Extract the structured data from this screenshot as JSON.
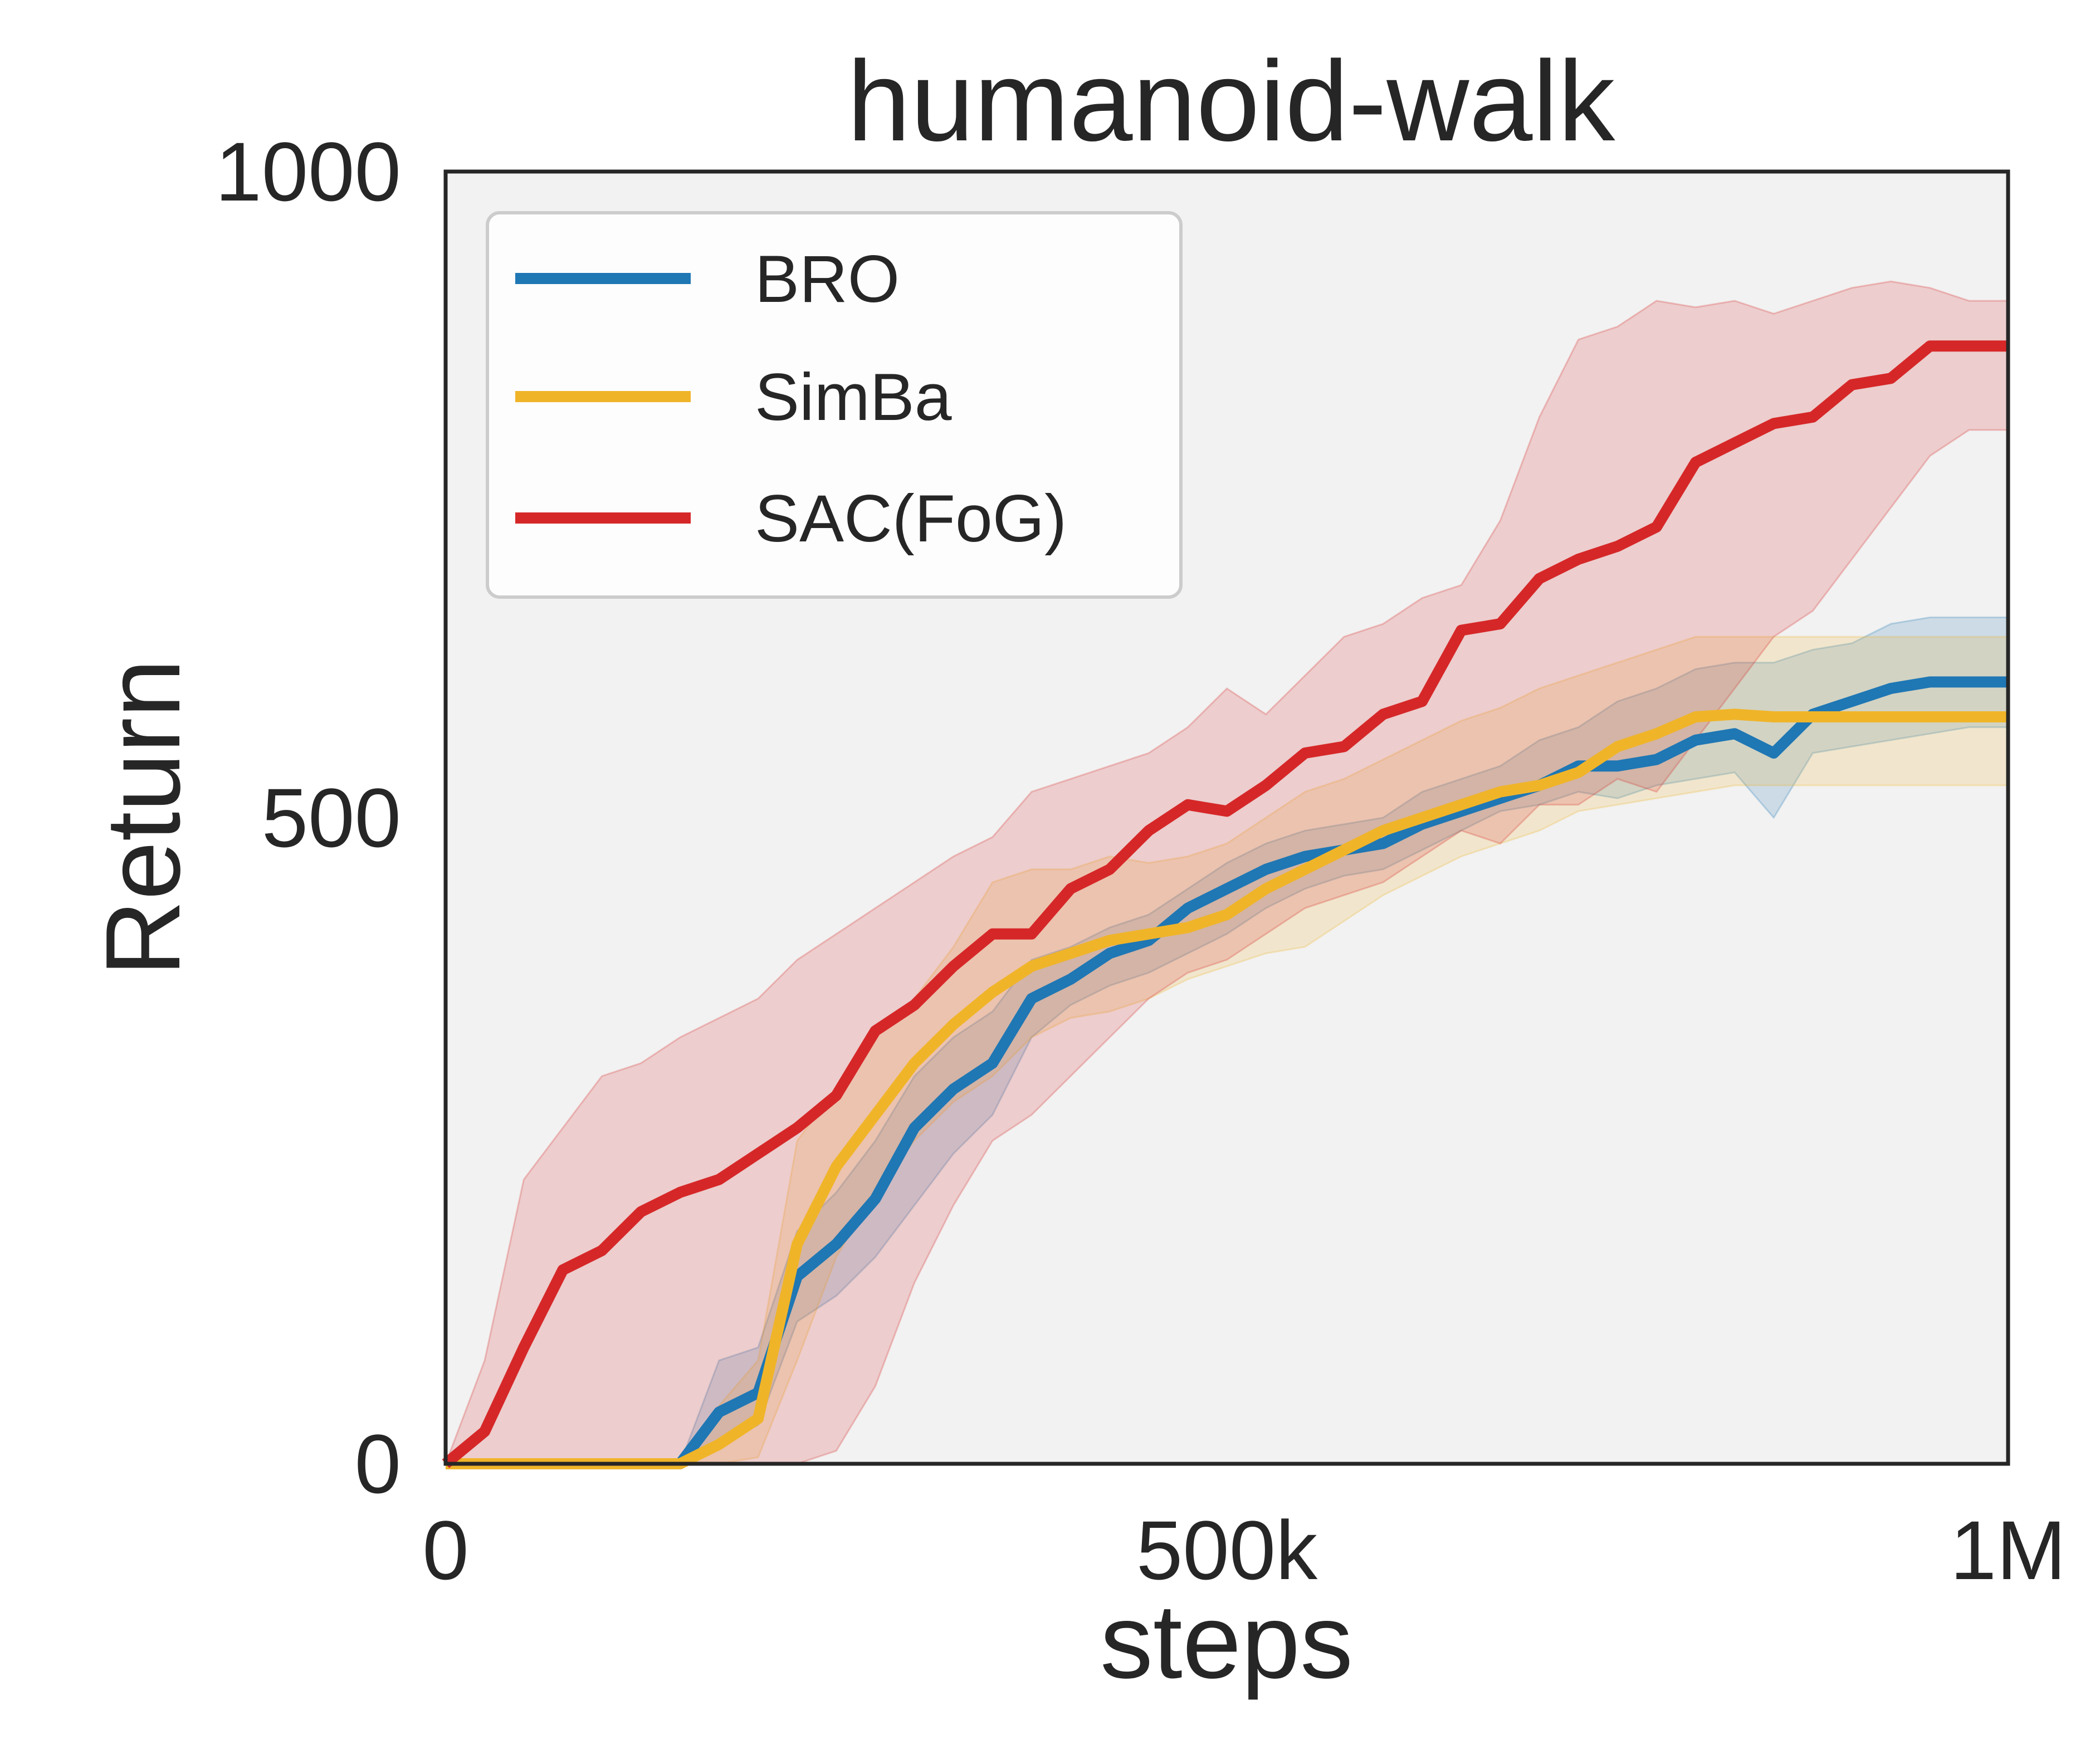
{
  "chart_data": {
    "type": "line",
    "title": "humanoid-walk",
    "xlabel": "steps",
    "ylabel": "Return",
    "xlim": [
      0,
      1000000
    ],
    "ylim": [
      0,
      1000
    ],
    "xticks": [
      {
        "value": 0,
        "label": "0"
      },
      {
        "value": 500000,
        "label": "500k"
      },
      {
        "value": 1000000,
        "label": "1M"
      }
    ],
    "yticks": [
      {
        "value": 0,
        "label": "0"
      },
      {
        "value": 500,
        "label": "500"
      },
      {
        "value": 1000,
        "label": "1000"
      }
    ],
    "grid": false,
    "legend_position": "top-left",
    "background_color": "#f2f2f2",
    "series": [
      {
        "name": "BRO",
        "color": "#1f77b4",
        "x": [
          0,
          25000,
          50000,
          75000,
          100000,
          125000,
          150000,
          175000,
          200000,
          225000,
          250000,
          275000,
          300000,
          325000,
          350000,
          375000,
          400000,
          425000,
          450000,
          475000,
          500000,
          525000,
          550000,
          575000,
          600000,
          625000,
          650000,
          675000,
          700000,
          725000,
          750000,
          775000,
          800000,
          825000,
          850000,
          875000,
          900000,
          925000,
          950000,
          975000,
          1000000
        ],
        "y": [
          0,
          0,
          0,
          0,
          0,
          0,
          0,
          40,
          55,
          145,
          170,
          205,
          260,
          290,
          310,
          360,
          375,
          395,
          405,
          430,
          445,
          460,
          470,
          475,
          480,
          495,
          505,
          515,
          525,
          540,
          540,
          545,
          560,
          565,
          550,
          580,
          590,
          600,
          605,
          605,
          605
        ],
        "lower": [
          0,
          0,
          0,
          0,
          0,
          0,
          0,
          15,
          30,
          110,
          130,
          160,
          200,
          240,
          270,
          330,
          355,
          370,
          380,
          395,
          410,
          430,
          445,
          455,
          460,
          475,
          490,
          505,
          510,
          520,
          515,
          525,
          530,
          535,
          500,
          550,
          555,
          560,
          565,
          570,
          570
        ],
        "upper": [
          0,
          0,
          0,
          0,
          0,
          0,
          0,
          80,
          90,
          180,
          210,
          250,
          300,
          330,
          350,
          390,
          400,
          415,
          425,
          445,
          465,
          480,
          490,
          495,
          500,
          520,
          530,
          540,
          560,
          570,
          590,
          600,
          615,
          620,
          620,
          630,
          635,
          650,
          655,
          655,
          655
        ]
      },
      {
        "name": "SimBa",
        "color": "#f0b429",
        "x": [
          0,
          25000,
          50000,
          75000,
          100000,
          125000,
          150000,
          175000,
          200000,
          225000,
          250000,
          275000,
          300000,
          325000,
          350000,
          375000,
          400000,
          425000,
          450000,
          475000,
          500000,
          525000,
          550000,
          575000,
          600000,
          625000,
          650000,
          675000,
          700000,
          725000,
          750000,
          775000,
          800000,
          825000,
          850000,
          875000,
          900000,
          925000,
          950000,
          975000,
          1000000
        ],
        "y": [
          0,
          0,
          0,
          0,
          0,
          0,
          0,
          15,
          35,
          170,
          230,
          270,
          310,
          340,
          365,
          385,
          395,
          405,
          410,
          415,
          425,
          445,
          460,
          475,
          490,
          500,
          510,
          520,
          525,
          535,
          555,
          565,
          578,
          580,
          578,
          578,
          578,
          578,
          578,
          578,
          578
        ],
        "lower": [
          0,
          0,
          0,
          0,
          0,
          0,
          0,
          0,
          5,
          80,
          160,
          210,
          250,
          280,
          300,
          330,
          345,
          350,
          360,
          375,
          385,
          395,
          400,
          420,
          440,
          455,
          470,
          480,
          490,
          505,
          510,
          515,
          520,
          525,
          525,
          525,
          525,
          525,
          525,
          525,
          525
        ],
        "upper": [
          0,
          0,
          0,
          0,
          0,
          0,
          0,
          45,
          80,
          250,
          290,
          330,
          360,
          400,
          450,
          460,
          460,
          470,
          465,
          470,
          480,
          500,
          520,
          530,
          545,
          560,
          575,
          585,
          600,
          610,
          620,
          630,
          640,
          640,
          640,
          640,
          640,
          640,
          640,
          640,
          640
        ]
      },
      {
        "name": "SAC(FoG)",
        "color": "#d62728",
        "x": [
          0,
          25000,
          50000,
          75000,
          100000,
          125000,
          150000,
          175000,
          200000,
          225000,
          250000,
          275000,
          300000,
          325000,
          350000,
          375000,
          400000,
          425000,
          450000,
          475000,
          500000,
          525000,
          550000,
          575000,
          600000,
          625000,
          650000,
          675000,
          700000,
          725000,
          750000,
          775000,
          800000,
          825000,
          850000,
          875000,
          900000,
          925000,
          950000,
          975000,
          1000000
        ],
        "y": [
          0,
          25,
          90,
          150,
          165,
          195,
          210,
          220,
          240,
          260,
          285,
          335,
          355,
          385,
          410,
          410,
          445,
          460,
          490,
          510,
          505,
          525,
          550,
          555,
          580,
          590,
          645,
          650,
          685,
          700,
          710,
          725,
          775,
          790,
          805,
          810,
          835,
          840,
          865,
          865,
          865
        ],
        "lower": [
          0,
          0,
          0,
          0,
          0,
          0,
          0,
          0,
          0,
          0,
          10,
          60,
          140,
          200,
          250,
          270,
          300,
          330,
          360,
          380,
          390,
          410,
          430,
          440,
          450,
          470,
          490,
          480,
          510,
          510,
          530,
          520,
          560,
          600,
          640,
          660,
          700,
          740,
          780,
          800,
          800
        ],
        "upper": [
          0,
          80,
          220,
          260,
          300,
          310,
          330,
          345,
          360,
          390,
          410,
          430,
          450,
          470,
          485,
          520,
          530,
          540,
          550,
          570,
          600,
          580,
          610,
          640,
          650,
          670,
          680,
          730,
          810,
          870,
          880,
          900,
          895,
          900,
          890,
          900,
          910,
          915,
          910,
          900,
          900
        ]
      }
    ]
  }
}
